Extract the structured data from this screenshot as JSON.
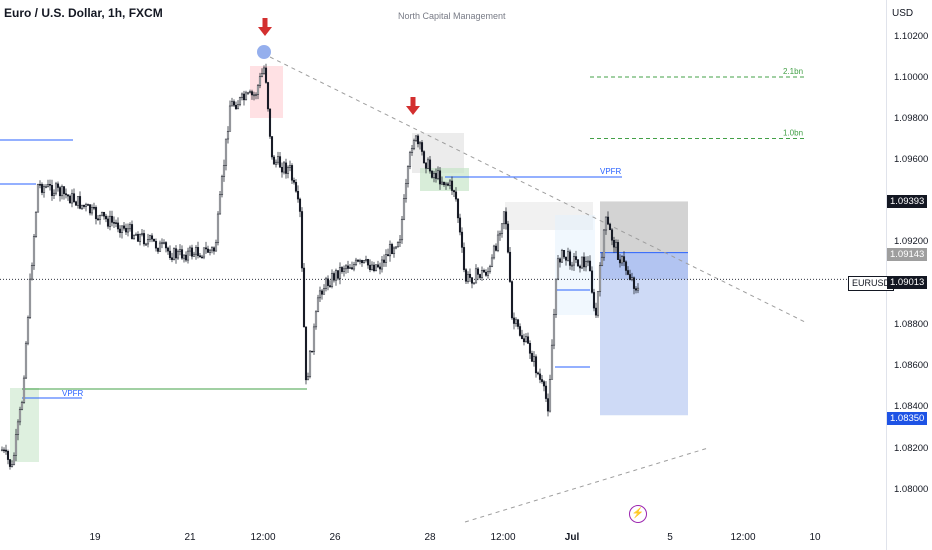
{
  "header": {
    "title": "Euro / U.S. Dollar, 1h, FXCM",
    "watermark": "North Capital Management"
  },
  "price_scale": {
    "currency": "USD",
    "ticks": [
      "1.10200",
      "1.10000",
      "1.09800",
      "1.09600",
      "1.09200",
      "1.08800",
      "1.08600",
      "1.08400",
      "1.08200",
      "1.08000"
    ],
    "labels": {
      "target_top": "1.09393",
      "current_box": "1.09143",
      "symbol": "EURUSD",
      "last_price": "1.09013",
      "stop": "1.08350"
    }
  },
  "time_axis": {
    "ticks": [
      "19",
      "21",
      "12:00",
      "26",
      "28",
      "12:00",
      "Jul",
      "5",
      "12:00",
      "10"
    ]
  },
  "annotations": {
    "vpfr_top": "VPFR",
    "vpfr_bottom": "VPFR",
    "fib_2": "2.1bn",
    "fib_1": "1.0bn",
    "bolt": "⚡"
  },
  "colors": {
    "up": "#131722",
    "down": "#131722",
    "arrow": "#d32f2f",
    "profile_line": "#2962ff",
    "vpfr_green": "#43a047",
    "target_box": "#9e9e9e",
    "stop_box": "#2962ff",
    "last_price": "#131722"
  },
  "chart_data": {
    "type": "candlestick",
    "symbol": "EURUSD",
    "timeframe": "1h",
    "ylim": [
      1.0788,
      1.1032
    ],
    "close_path": [
      {
        "x": "Jun 17",
        "y": 1.082
      },
      {
        "x": "Jun 18",
        "y": 1.0948
      },
      {
        "x": "Jun 19",
        "y": 1.093
      },
      {
        "x": "Jun 20",
        "y": 1.0925
      },
      {
        "x": "Jun 21",
        "y": 1.095
      },
      {
        "x": "Jun 21 12:00",
        "y": 1.1002
      },
      {
        "x": "Jun 22",
        "y": 1.0962
      },
      {
        "x": "Jun 24",
        "y": 1.0865
      },
      {
        "x": "Jun 25",
        "y": 1.0895
      },
      {
        "x": "Jun 26",
        "y": 1.092
      },
      {
        "x": "Jun 27",
        "y": 1.096
      },
      {
        "x": "Jun 28",
        "y": 1.0955
      },
      {
        "x": "Jun 29",
        "y": 1.093
      },
      {
        "x": "Jun 30",
        "y": 1.088
      },
      {
        "x": "Jun 30 12:00",
        "y": 1.087
      },
      {
        "x": "Jul 1",
        "y": 1.092
      },
      {
        "x": "Jul 2",
        "y": 1.0901
      }
    ],
    "levels": {
      "fib_2_1bn": 1.1,
      "fib_1_0bn": 1.097,
      "target_top": 1.09393,
      "entry": 1.09143,
      "last_price": 1.09013,
      "stop": 1.0835
    }
  }
}
